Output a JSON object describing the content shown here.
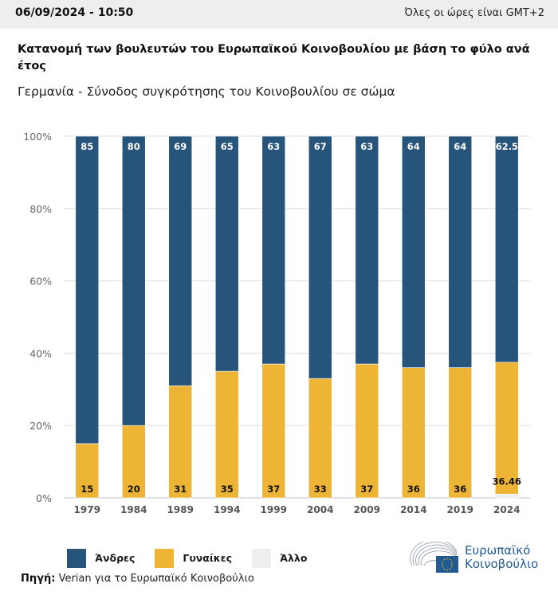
{
  "header": {
    "datetime": "06/09/2024 - 10:50",
    "timezone_note": "Όλες οι ώρες είναι GMT+2"
  },
  "colors": {
    "men": "#26547a",
    "women": "#edb436",
    "other": "#eceef0",
    "grid": "#dddddd",
    "axis_text": "#666666",
    "header_bg": "#eeeeee",
    "logo_blue": "#235a92"
  },
  "legend": [
    {
      "key": "men",
      "label": "Άνδρες"
    },
    {
      "key": "women",
      "label": "Γυναίκες"
    },
    {
      "key": "other",
      "label": "Άλλο"
    }
  ],
  "source": {
    "prefix": "Πηγή:",
    "text": " Verian για το Ευρωπαϊκό Κοινοβούλιο"
  },
  "logo": {
    "line1": "Ευρωπαϊκό",
    "line2": "Κοινοβούλιο"
  },
  "chart_data": {
    "type": "bar",
    "stacked": true,
    "title": "Κατανομή των βουλευτών του Ευρωπαϊκού Κοινοβουλίου με βάση το φύλο ανά έτος",
    "subtitle": "Γερμανία - Σύνοδος συγκρότησης του Κοινοβουλίου σε σώμα",
    "xlabel": "",
    "ylabel": "",
    "ylim": [
      0,
      100
    ],
    "yticks": [
      0,
      20,
      40,
      60,
      80,
      100
    ],
    "ytick_labels": [
      "0%",
      "20%",
      "40%",
      "60%",
      "80%",
      "100%"
    ],
    "grid": true,
    "legend_position": "bottom-left",
    "categories": [
      "1979",
      "1984",
      "1989",
      "1994",
      "1999",
      "2004",
      "2009",
      "2014",
      "2019",
      "2024"
    ],
    "series": [
      {
        "name": "Άλλο",
        "key": "other",
        "values": [
          0,
          0,
          0,
          0,
          0,
          0,
          0,
          0,
          0,
          1.04
        ],
        "labels": [
          "",
          "",
          "",
          "",
          "",
          "",
          "",
          "",
          "",
          ""
        ]
      },
      {
        "name": "Γυναίκες",
        "key": "women",
        "values": [
          15,
          20,
          31,
          35,
          37,
          33,
          37,
          36,
          36,
          36.46
        ],
        "labels": [
          "15",
          "20",
          "31",
          "35",
          "37",
          "33",
          "37",
          "36",
          "36",
          "36.46"
        ]
      },
      {
        "name": "Άνδρες",
        "key": "men",
        "values": [
          85,
          80,
          69,
          65,
          63,
          67,
          63,
          64,
          64,
          62.5
        ],
        "labels": [
          "85",
          "80",
          "69",
          "65",
          "63",
          "67",
          "63",
          "64",
          "64",
          "62.5"
        ]
      }
    ]
  }
}
